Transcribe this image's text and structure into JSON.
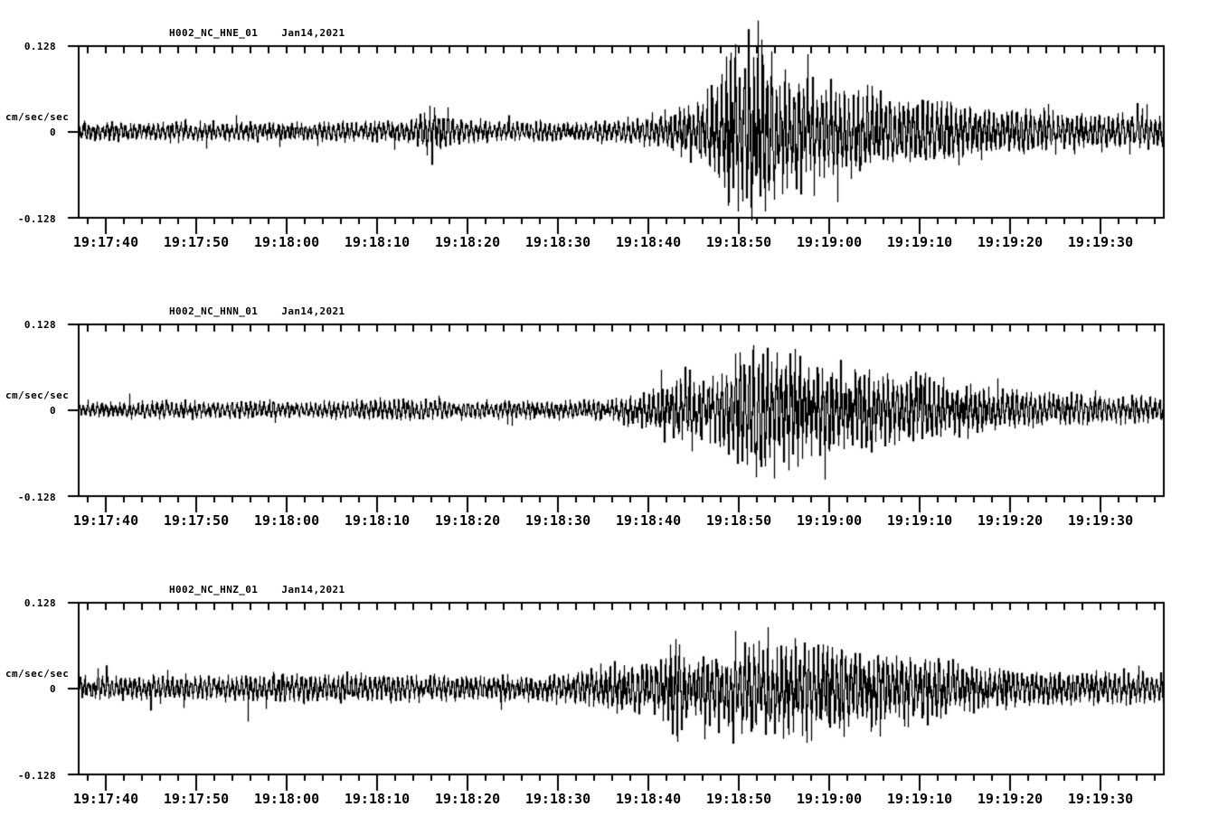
{
  "page": {
    "background_color": "#ffffff",
    "ink_color": "#000000"
  },
  "chart_data": [
    {
      "type": "line",
      "variant": "seismogram-trace",
      "station_channel": "H002_NC_HNE_01",
      "date": "Jan14,2021",
      "ylabel": "cm/sec/sec",
      "y_ticks": [
        "0.128",
        "0",
        "-0.128"
      ],
      "ylim": [
        -0.128,
        0.128
      ],
      "time_start": "19:17:37",
      "time_end": "19:19:37",
      "x_tick_labels": [
        "19:17:40",
        "19:17:50",
        "19:18:00",
        "19:18:10",
        "19:18:20",
        "19:18:30",
        "19:18:40",
        "19:18:50",
        "19:19:00",
        "19:19:10",
        "19:19:20",
        "19:19:30"
      ],
      "x_major_interval_s": 10,
      "x_minor_interval_s": 2,
      "seed": 101,
      "clip": 0.168,
      "envelope_t_s": [
        37,
        55,
        70,
        74,
        76,
        78,
        83,
        90,
        96,
        99,
        101,
        103,
        105,
        107,
        108,
        109,
        110,
        111,
        112,
        113,
        114,
        115,
        116,
        118,
        120,
        122,
        124,
        126,
        128,
        130,
        132,
        134,
        136,
        138,
        140,
        143,
        146,
        149,
        152,
        157
      ],
      "envelope_amp": [
        0.015,
        0.014,
        0.015,
        0.017,
        0.042,
        0.02,
        0.015,
        0.015,
        0.016,
        0.022,
        0.027,
        0.034,
        0.048,
        0.062,
        0.088,
        0.128,
        0.1,
        0.118,
        0.126,
        0.1,
        0.108,
        0.086,
        0.09,
        0.078,
        0.064,
        0.056,
        0.06,
        0.05,
        0.046,
        0.05,
        0.042,
        0.044,
        0.036,
        0.04,
        0.034,
        0.032,
        0.03,
        0.026,
        0.028,
        0.024
      ]
    },
    {
      "type": "line",
      "variant": "seismogram-trace",
      "station_channel": "H002_NC_HNN_01",
      "date": "Jan14,2021",
      "ylabel": "cm/sec/sec",
      "y_ticks": [
        "0.128",
        "0",
        "-0.128"
      ],
      "ylim": [
        -0.128,
        0.128
      ],
      "time_start": "19:17:37",
      "time_end": "19:19:37",
      "x_tick_labels": [
        "19:17:40",
        "19:17:50",
        "19:18:00",
        "19:18:10",
        "19:18:20",
        "19:18:30",
        "19:18:40",
        "19:18:50",
        "19:19:00",
        "19:19:10",
        "19:19:20",
        "19:19:30"
      ],
      "x_major_interval_s": 10,
      "x_minor_interval_s": 2,
      "seed": 202,
      "clip": 0.11,
      "envelope_t_s": [
        37,
        50,
        62,
        72,
        75,
        80,
        88,
        95,
        97,
        100,
        102,
        104,
        106,
        108,
        110,
        112,
        113,
        114,
        115,
        116,
        118,
        120,
        122,
        124,
        126,
        128,
        129,
        131,
        133,
        136,
        139,
        142,
        146,
        150,
        154,
        157
      ],
      "envelope_amp": [
        0.012,
        0.013,
        0.012,
        0.017,
        0.015,
        0.013,
        0.013,
        0.017,
        0.021,
        0.028,
        0.044,
        0.05,
        0.048,
        0.058,
        0.072,
        0.102,
        0.082,
        0.098,
        0.078,
        0.088,
        0.068,
        0.073,
        0.06,
        0.055,
        0.05,
        0.044,
        0.058,
        0.048,
        0.04,
        0.034,
        0.03,
        0.027,
        0.024,
        0.021,
        0.02,
        0.019
      ]
    },
    {
      "type": "line",
      "variant": "seismogram-trace",
      "station_channel": "H002_NC_HNZ_01",
      "date": "Jan14,2021",
      "ylabel": "cm/sec/sec",
      "y_ticks": [
        "0.128",
        "0",
        "-0.128"
      ],
      "ylim": [
        -0.128,
        0.128
      ],
      "time_start": "19:17:37",
      "time_end": "19:19:37",
      "x_tick_labels": [
        "19:17:40",
        "19:17:50",
        "19:18:00",
        "19:18:10",
        "19:18:20",
        "19:18:30",
        "19:18:40",
        "19:18:50",
        "19:19:00",
        "19:19:10",
        "19:19:20",
        "19:19:30"
      ],
      "x_major_interval_s": 10,
      "x_minor_interval_s": 2,
      "seed": 303,
      "clip": 0.1,
      "envelope_t_s": [
        37,
        48,
        58,
        66,
        72,
        78,
        85,
        91,
        94,
        96,
        98,
        100,
        102,
        103,
        104,
        106,
        108,
        110,
        112,
        113,
        114,
        116,
        118,
        120,
        122,
        124,
        126,
        128,
        130,
        133,
        136,
        140,
        144,
        148,
        152,
        157
      ],
      "envelope_amp": [
        0.016,
        0.018,
        0.02,
        0.022,
        0.02,
        0.018,
        0.018,
        0.02,
        0.03,
        0.038,
        0.034,
        0.042,
        0.044,
        0.092,
        0.044,
        0.05,
        0.058,
        0.072,
        0.068,
        0.082,
        0.064,
        0.076,
        0.068,
        0.062,
        0.066,
        0.054,
        0.058,
        0.048,
        0.044,
        0.04,
        0.034,
        0.03,
        0.027,
        0.025,
        0.025,
        0.023
      ]
    }
  ]
}
